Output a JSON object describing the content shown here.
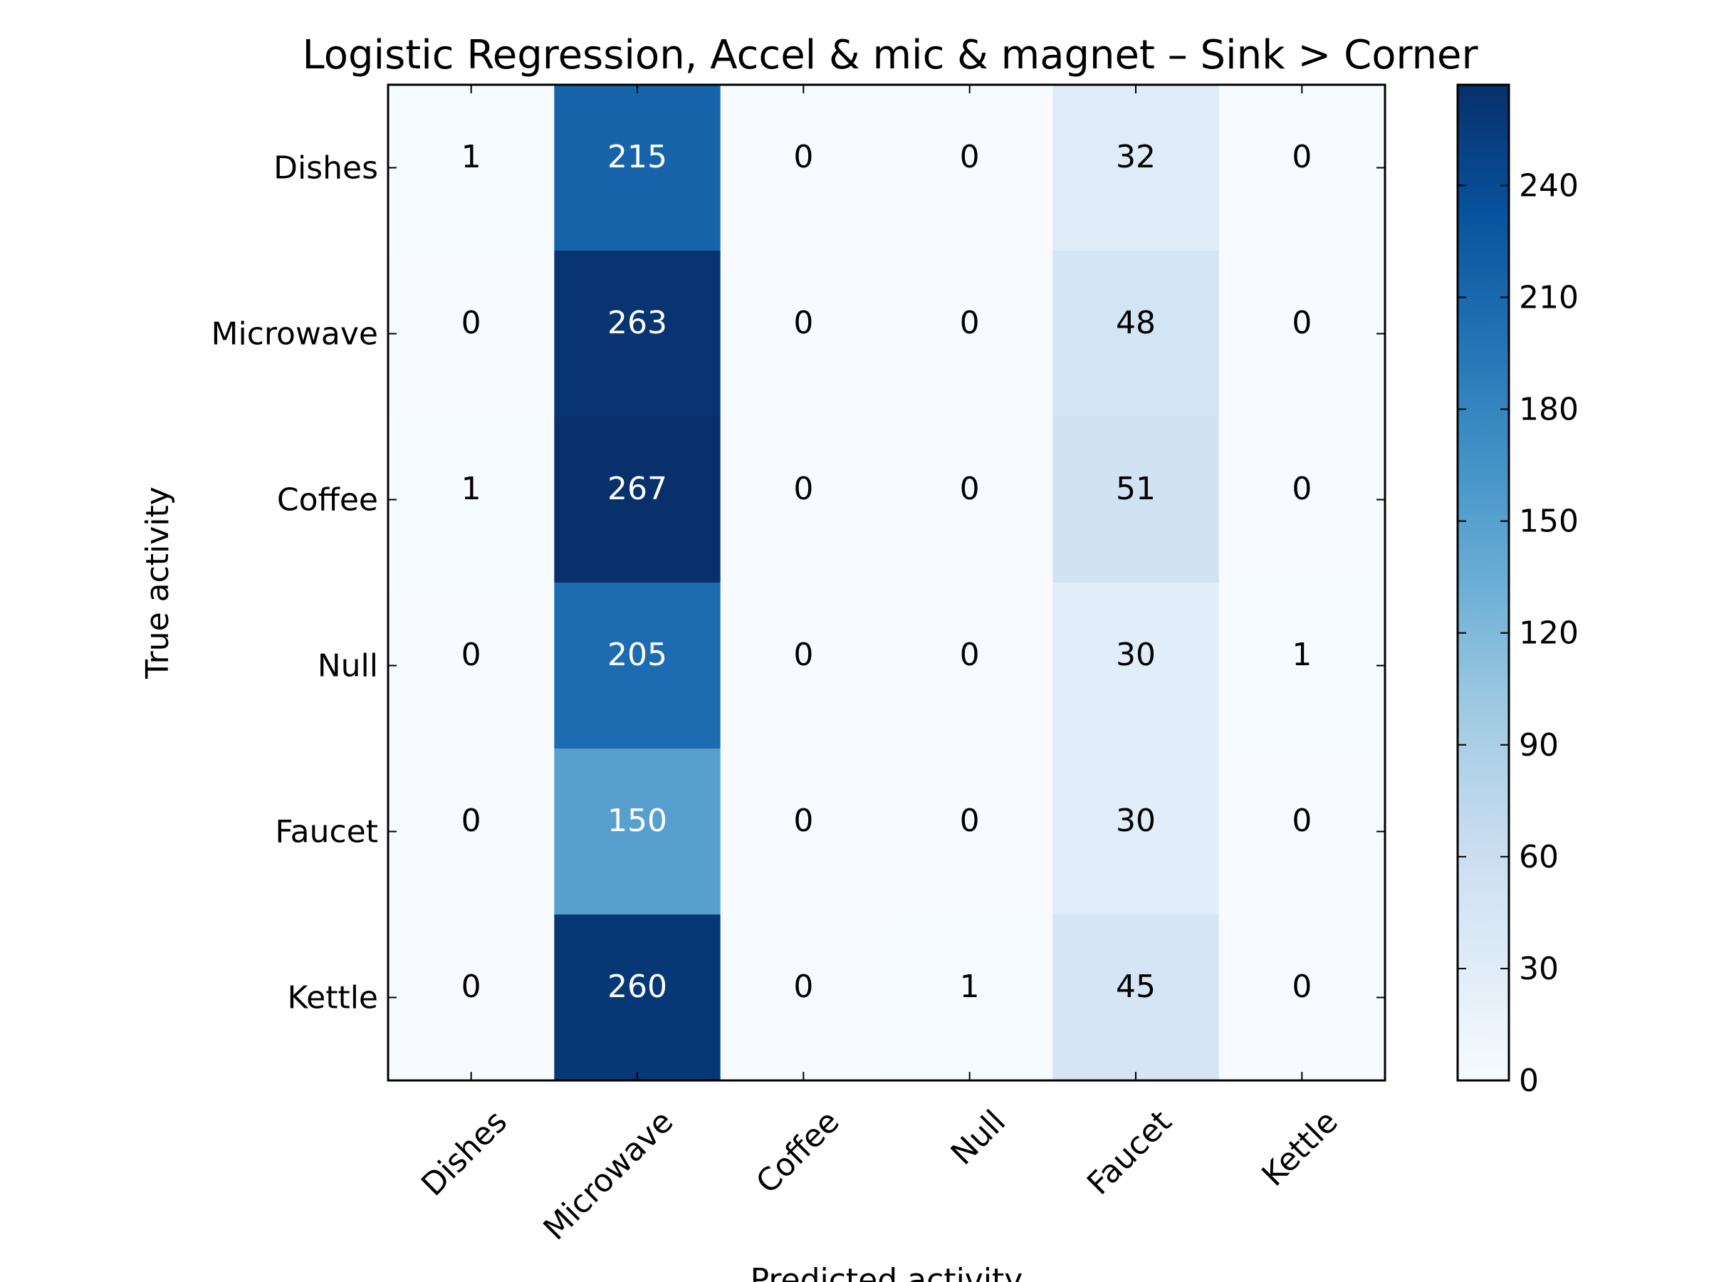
{
  "chart_data": {
    "type": "heatmap",
    "title": "Logistic Regression, Accel & mic & magnet – Sink > Corner",
    "xlabel": "Predicted activity",
    "ylabel": "True activity",
    "x_categories": [
      "Dishes",
      "Microwave",
      "Coffee",
      "Null",
      "Faucet",
      "Kettle"
    ],
    "y_categories": [
      "Dishes",
      "Microwave",
      "Coffee",
      "Null",
      "Faucet",
      "Kettle"
    ],
    "values": [
      [
        1,
        215,
        0,
        0,
        32,
        0
      ],
      [
        0,
        263,
        0,
        0,
        48,
        0
      ],
      [
        1,
        267,
        0,
        0,
        51,
        0
      ],
      [
        0,
        205,
        0,
        0,
        30,
        1
      ],
      [
        0,
        150,
        0,
        0,
        30,
        0
      ],
      [
        0,
        260,
        0,
        1,
        45,
        0
      ]
    ],
    "colormap": "Blues",
    "colorbar": {
      "range": [
        0,
        267
      ],
      "ticks": [
        0,
        30,
        60,
        90,
        120,
        150,
        180,
        210,
        240
      ]
    },
    "text_colors": {
      "light": "#ffffff",
      "dark": "#000000"
    }
  }
}
